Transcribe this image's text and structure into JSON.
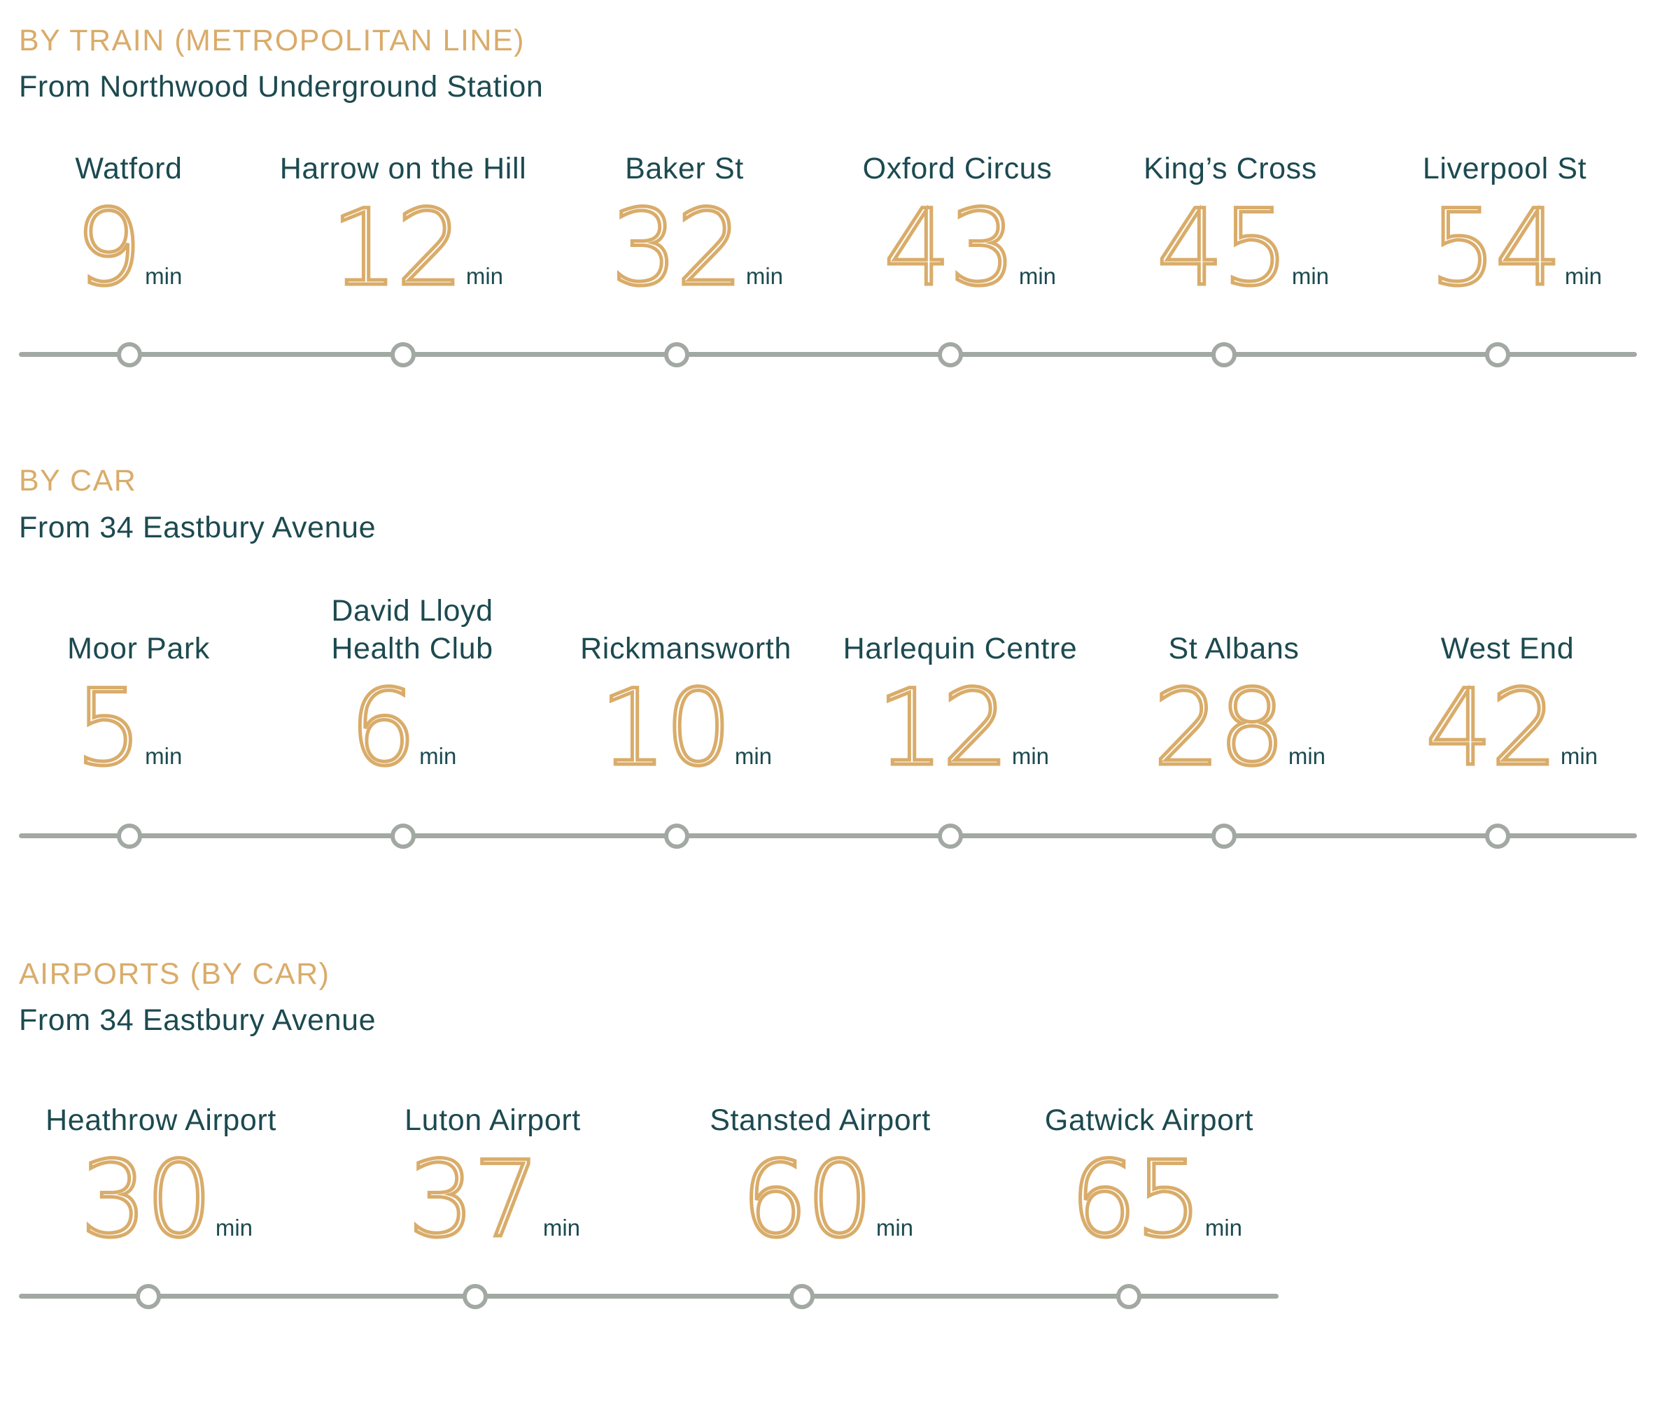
{
  "colors": {
    "accent": "#d9ac6a",
    "text": "#1c4a50",
    "line": "#a2a8a2",
    "background": "#ffffff"
  },
  "train": {
    "heading": "BY TRAIN (METROPOLITAN LINE)",
    "subheading": "From Northwood Underground Station",
    "stops": [
      {
        "name": "Watford",
        "minutes": "9",
        "unit": "min"
      },
      {
        "name": "Harrow on the Hill",
        "minutes": "12",
        "unit": "min"
      },
      {
        "name": "Baker St",
        "minutes": "32",
        "unit": "min"
      },
      {
        "name": "Oxford Circus",
        "minutes": "43",
        "unit": "min"
      },
      {
        "name": "King’s Cross",
        "minutes": "45",
        "unit": "min"
      },
      {
        "name": "Liverpool St",
        "minutes": "54",
        "unit": "min"
      }
    ]
  },
  "car": {
    "heading": "BY CAR",
    "subheading": "From 34 Eastbury Avenue",
    "stops": [
      {
        "name": "Moor Park",
        "minutes": "5",
        "unit": "min"
      },
      {
        "name": "David Lloyd\nHealth Club",
        "minutes": "6",
        "unit": "min"
      },
      {
        "name": "Rickmansworth",
        "minutes": "10",
        "unit": "min"
      },
      {
        "name": "Harlequin Centre",
        "minutes": "12",
        "unit": "min"
      },
      {
        "name": "St Albans",
        "minutes": "28",
        "unit": "min"
      },
      {
        "name": "West End",
        "minutes": "42",
        "unit": "min"
      }
    ]
  },
  "airports": {
    "heading": "AIRPORTS (BY CAR)",
    "subheading": "From 34 Eastbury Avenue",
    "stops": [
      {
        "name": "Heathrow Airport",
        "minutes": "30",
        "unit": "min"
      },
      {
        "name": "Luton Airport",
        "minutes": "37",
        "unit": "min"
      },
      {
        "name": "Stansted Airport",
        "minutes": "60",
        "unit": "min"
      },
      {
        "name": "Gatwick Airport",
        "minutes": "65",
        "unit": "min"
      }
    ]
  }
}
